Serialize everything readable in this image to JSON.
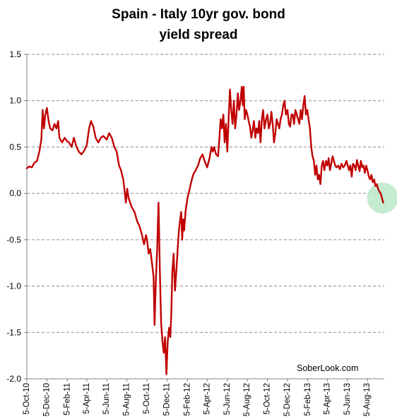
{
  "chart_data": {
    "type": "line",
    "title_lines": [
      "Spain - Italy 10yr gov. bond",
      "yield spread"
    ],
    "xlabel": "",
    "ylabel": "",
    "ylim": [
      -2.0,
      1.5
    ],
    "yticks": [
      1.5,
      1.0,
      0.5,
      0.0,
      -0.5,
      -1.0,
      -1.5,
      -2.0
    ],
    "ytick_labels": [
      "1.5",
      "1.0",
      "0.5",
      "0.0",
      "-0.5",
      "-1.0",
      "-1.5",
      "-2.0"
    ],
    "xlim": [
      "2010-10-05",
      "2013-09-25"
    ],
    "xtick_labels": [
      "5-Oct-10",
      "5-Dec-10",
      "5-Feb-11",
      "5-Apr-11",
      "5-Jun-11",
      "5-Aug-11",
      "5-Oct-11",
      "5-Dec-11",
      "5-Feb-12",
      "5-Apr-12",
      "5-Jun-12",
      "5-Aug-12",
      "5-Oct-12",
      "5-Dec-12",
      "5-Feb-13",
      "5-Apr-13",
      "5-Jun-13",
      "5-Aug-13"
    ],
    "xtick_dates": [
      "2010-10-05",
      "2010-12-05",
      "2011-02-05",
      "2011-04-05",
      "2011-06-05",
      "2011-08-05",
      "2011-10-05",
      "2011-12-05",
      "2012-02-05",
      "2012-04-05",
      "2012-06-05",
      "2012-08-05",
      "2012-10-05",
      "2012-12-05",
      "2013-02-05",
      "2013-04-05",
      "2013-06-05",
      "2013-08-05"
    ],
    "grid": true,
    "legend": "none",
    "annotation": "SoberLook.com",
    "highlight": {
      "date": "2013-09-20",
      "value": -0.05,
      "color": "#b6e6c6"
    },
    "series": [
      {
        "color": "#c00000",
        "points": [
          [
            "2010-10-05",
            0.27
          ],
          [
            "2010-10-12",
            0.29
          ],
          [
            "2010-10-20",
            0.28
          ],
          [
            "2010-10-28",
            0.33
          ],
          [
            "2010-11-05",
            0.35
          ],
          [
            "2010-11-12",
            0.45
          ],
          [
            "2010-11-18",
            0.58
          ],
          [
            "2010-11-22",
            0.9
          ],
          [
            "2010-11-26",
            0.7
          ],
          [
            "2010-11-30",
            0.85
          ],
          [
            "2010-12-05",
            0.92
          ],
          [
            "2010-12-10",
            0.78
          ],
          [
            "2010-12-15",
            0.7
          ],
          [
            "2010-12-22",
            0.68
          ],
          [
            "2010-12-28",
            0.75
          ],
          [
            "2011-01-03",
            0.7
          ],
          [
            "2011-01-08",
            0.78
          ],
          [
            "2011-01-12",
            0.6
          ],
          [
            "2011-01-20",
            0.55
          ],
          [
            "2011-01-28",
            0.6
          ],
          [
            "2011-02-05",
            0.56
          ],
          [
            "2011-02-10",
            0.55
          ],
          [
            "2011-02-18",
            0.5
          ],
          [
            "2011-02-25",
            0.6
          ],
          [
            "2011-03-05",
            0.5
          ],
          [
            "2011-03-12",
            0.45
          ],
          [
            "2011-03-20",
            0.42
          ],
          [
            "2011-03-28",
            0.46
          ],
          [
            "2011-04-05",
            0.52
          ],
          [
            "2011-04-12",
            0.7
          ],
          [
            "2011-04-18",
            0.78
          ],
          [
            "2011-04-25",
            0.72
          ],
          [
            "2011-05-02",
            0.6
          ],
          [
            "2011-05-10",
            0.55
          ],
          [
            "2011-05-18",
            0.6
          ],
          [
            "2011-05-25",
            0.62
          ],
          [
            "2011-06-05",
            0.58
          ],
          [
            "2011-06-12",
            0.65
          ],
          [
            "2011-06-20",
            0.6
          ],
          [
            "2011-06-28",
            0.5
          ],
          [
            "2011-07-05",
            0.45
          ],
          [
            "2011-07-12",
            0.3
          ],
          [
            "2011-07-18",
            0.25
          ],
          [
            "2011-07-25",
            0.15
          ],
          [
            "2011-07-29",
            0.03
          ],
          [
            "2011-08-02",
            -0.1
          ],
          [
            "2011-08-06",
            0.05
          ],
          [
            "2011-08-10",
            -0.05
          ],
          [
            "2011-08-20",
            -0.15
          ],
          [
            "2011-08-28",
            -0.2
          ],
          [
            "2011-09-05",
            -0.3
          ],
          [
            "2011-09-12",
            -0.35
          ],
          [
            "2011-09-20",
            -0.45
          ],
          [
            "2011-09-26",
            -0.55
          ],
          [
            "2011-10-02",
            -0.45
          ],
          [
            "2011-10-05",
            -0.5
          ],
          [
            "2011-10-10",
            -0.65
          ],
          [
            "2011-10-15",
            -0.6
          ],
          [
            "2011-10-20",
            -0.75
          ],
          [
            "2011-10-25",
            -0.9
          ],
          [
            "2011-10-28",
            -1.42
          ],
          [
            "2011-11-01",
            -0.95
          ],
          [
            "2011-11-05",
            -0.6
          ],
          [
            "2011-11-09",
            -0.1
          ],
          [
            "2011-11-13",
            -0.8
          ],
          [
            "2011-11-17",
            -1.4
          ],
          [
            "2011-11-21",
            -1.6
          ],
          [
            "2011-11-25",
            -1.72
          ],
          [
            "2011-11-29",
            -1.55
          ],
          [
            "2011-12-03",
            -1.95
          ],
          [
            "2011-12-07",
            -1.6
          ],
          [
            "2011-12-11",
            -1.45
          ],
          [
            "2011-12-15",
            -1.55
          ],
          [
            "2011-12-18",
            -1.3
          ],
          [
            "2011-12-21",
            -0.85
          ],
          [
            "2011-12-25",
            -0.65
          ],
          [
            "2011-12-29",
            -1.05
          ],
          [
            "2012-01-03",
            -0.8
          ],
          [
            "2012-01-07",
            -0.55
          ],
          [
            "2012-01-10",
            -0.4
          ],
          [
            "2012-01-13",
            -0.3
          ],
          [
            "2012-01-17",
            -0.2
          ],
          [
            "2012-01-20",
            -0.5
          ],
          [
            "2012-01-23",
            -0.28
          ],
          [
            "2012-01-26",
            -0.4
          ],
          [
            "2012-01-30",
            -0.2
          ],
          [
            "2012-02-05",
            -0.05
          ],
          [
            "2012-02-10",
            0.02
          ],
          [
            "2012-02-15",
            0.1
          ],
          [
            "2012-02-22",
            0.2
          ],
          [
            "2012-03-01",
            0.25
          ],
          [
            "2012-03-08",
            0.3
          ],
          [
            "2012-03-15",
            0.38
          ],
          [
            "2012-03-22",
            0.42
          ],
          [
            "2012-03-28",
            0.35
          ],
          [
            "2012-04-05",
            0.28
          ],
          [
            "2012-04-12",
            0.38
          ],
          [
            "2012-04-18",
            0.5
          ],
          [
            "2012-04-22",
            0.45
          ],
          [
            "2012-04-26",
            0.5
          ],
          [
            "2012-05-02",
            0.42
          ],
          [
            "2012-05-08",
            0.4
          ],
          [
            "2012-05-12",
            0.6
          ],
          [
            "2012-05-16",
            0.8
          ],
          [
            "2012-05-20",
            0.7
          ],
          [
            "2012-05-24",
            0.85
          ],
          [
            "2012-05-28",
            0.55
          ],
          [
            "2012-06-01",
            0.75
          ],
          [
            "2012-06-05",
            0.45
          ],
          [
            "2012-06-09",
            0.8
          ],
          [
            "2012-06-13",
            1.12
          ],
          [
            "2012-06-17",
            0.9
          ],
          [
            "2012-06-21",
            0.75
          ],
          [
            "2012-06-25",
            1.0
          ],
          [
            "2012-06-29",
            0.7
          ],
          [
            "2012-07-03",
            0.85
          ],
          [
            "2012-07-07",
            1.08
          ],
          [
            "2012-07-11",
            0.9
          ],
          [
            "2012-07-15",
            1.0
          ],
          [
            "2012-07-19",
            1.15
          ],
          [
            "2012-07-22",
            0.95
          ],
          [
            "2012-07-25",
            1.15
          ],
          [
            "2012-07-28",
            0.8
          ],
          [
            "2012-08-01",
            0.9
          ],
          [
            "2012-08-05",
            0.85
          ],
          [
            "2012-08-09",
            0.78
          ],
          [
            "2012-08-13",
            0.72
          ],
          [
            "2012-08-17",
            0.6
          ],
          [
            "2012-08-21",
            0.68
          ],
          [
            "2012-08-25",
            0.78
          ],
          [
            "2012-08-29",
            0.6
          ],
          [
            "2012-09-02",
            0.7
          ],
          [
            "2012-09-06",
            0.65
          ],
          [
            "2012-09-10",
            0.78
          ],
          [
            "2012-09-14",
            0.55
          ],
          [
            "2012-09-18",
            0.8
          ],
          [
            "2012-09-22",
            0.9
          ],
          [
            "2012-09-26",
            0.7
          ],
          [
            "2012-10-01",
            0.8
          ],
          [
            "2012-10-05",
            0.85
          ],
          [
            "2012-10-09",
            0.7
          ],
          [
            "2012-10-13",
            0.75
          ],
          [
            "2012-10-17",
            0.88
          ],
          [
            "2012-10-21",
            0.75
          ],
          [
            "2012-10-25",
            0.55
          ],
          [
            "2012-10-29",
            0.65
          ],
          [
            "2012-11-02",
            0.8
          ],
          [
            "2012-11-06",
            0.75
          ],
          [
            "2012-11-10",
            0.7
          ],
          [
            "2012-11-14",
            0.8
          ],
          [
            "2012-11-18",
            0.85
          ],
          [
            "2012-11-22",
            0.95
          ],
          [
            "2012-11-26",
            1.0
          ],
          [
            "2012-11-30",
            0.85
          ],
          [
            "2012-12-05",
            0.9
          ],
          [
            "2012-12-09",
            0.75
          ],
          [
            "2012-12-13",
            0.72
          ],
          [
            "2012-12-17",
            0.85
          ],
          [
            "2012-12-21",
            0.85
          ],
          [
            "2012-12-25",
            0.75
          ],
          [
            "2012-12-29",
            0.9
          ],
          [
            "2013-01-02",
            0.85
          ],
          [
            "2013-01-06",
            0.8
          ],
          [
            "2013-01-10",
            0.75
          ],
          [
            "2013-01-14",
            0.9
          ],
          [
            "2013-01-18",
            0.8
          ],
          [
            "2013-01-22",
            0.95
          ],
          [
            "2013-01-26",
            1.05
          ],
          [
            "2013-01-30",
            0.85
          ],
          [
            "2013-02-03",
            0.9
          ],
          [
            "2013-02-07",
            0.8
          ],
          [
            "2013-02-11",
            0.7
          ],
          [
            "2013-02-15",
            0.5
          ],
          [
            "2013-02-19",
            0.4
          ],
          [
            "2013-02-23",
            0.35
          ],
          [
            "2013-02-27",
            0.2
          ],
          [
            "2013-03-03",
            0.3
          ],
          [
            "2013-03-07",
            0.15
          ],
          [
            "2013-03-11",
            0.2
          ],
          [
            "2013-03-15",
            0.1
          ],
          [
            "2013-03-19",
            0.3
          ],
          [
            "2013-03-23",
            0.35
          ],
          [
            "2013-03-27",
            0.25
          ],
          [
            "2013-04-01",
            0.35
          ],
          [
            "2013-04-05",
            0.3
          ],
          [
            "2013-04-09",
            0.38
          ],
          [
            "2013-04-13",
            0.25
          ],
          [
            "2013-04-17",
            0.32
          ],
          [
            "2013-04-21",
            0.4
          ],
          [
            "2013-04-25",
            0.35
          ],
          [
            "2013-04-29",
            0.3
          ],
          [
            "2013-05-03",
            0.28
          ],
          [
            "2013-05-08",
            0.3
          ],
          [
            "2013-05-13",
            0.26
          ],
          [
            "2013-05-18",
            0.32
          ],
          [
            "2013-05-23",
            0.28
          ],
          [
            "2013-05-28",
            0.3
          ],
          [
            "2013-06-02",
            0.35
          ],
          [
            "2013-06-06",
            0.3
          ],
          [
            "2013-06-10",
            0.25
          ],
          [
            "2013-06-14",
            0.3
          ],
          [
            "2013-06-18",
            0.18
          ],
          [
            "2013-06-22",
            0.32
          ],
          [
            "2013-06-26",
            0.3
          ],
          [
            "2013-06-30",
            0.25
          ],
          [
            "2013-07-04",
            0.36
          ],
          [
            "2013-07-08",
            0.3
          ],
          [
            "2013-07-12",
            0.24
          ],
          [
            "2013-07-16",
            0.35
          ],
          [
            "2013-07-20",
            0.28
          ],
          [
            "2013-07-24",
            0.3
          ],
          [
            "2013-07-28",
            0.22
          ],
          [
            "2013-08-01",
            0.3
          ],
          [
            "2013-08-05",
            0.25
          ],
          [
            "2013-08-09",
            0.18
          ],
          [
            "2013-08-13",
            0.15
          ],
          [
            "2013-08-17",
            0.2
          ],
          [
            "2013-08-21",
            0.12
          ],
          [
            "2013-08-25",
            0.15
          ],
          [
            "2013-08-29",
            0.08
          ],
          [
            "2013-09-02",
            0.1
          ],
          [
            "2013-09-06",
            0.05
          ],
          [
            "2013-09-10",
            0.02
          ],
          [
            "2013-09-14",
            0.0
          ],
          [
            "2013-09-18",
            -0.05
          ],
          [
            "2013-09-22",
            -0.1
          ]
        ]
      }
    ]
  }
}
